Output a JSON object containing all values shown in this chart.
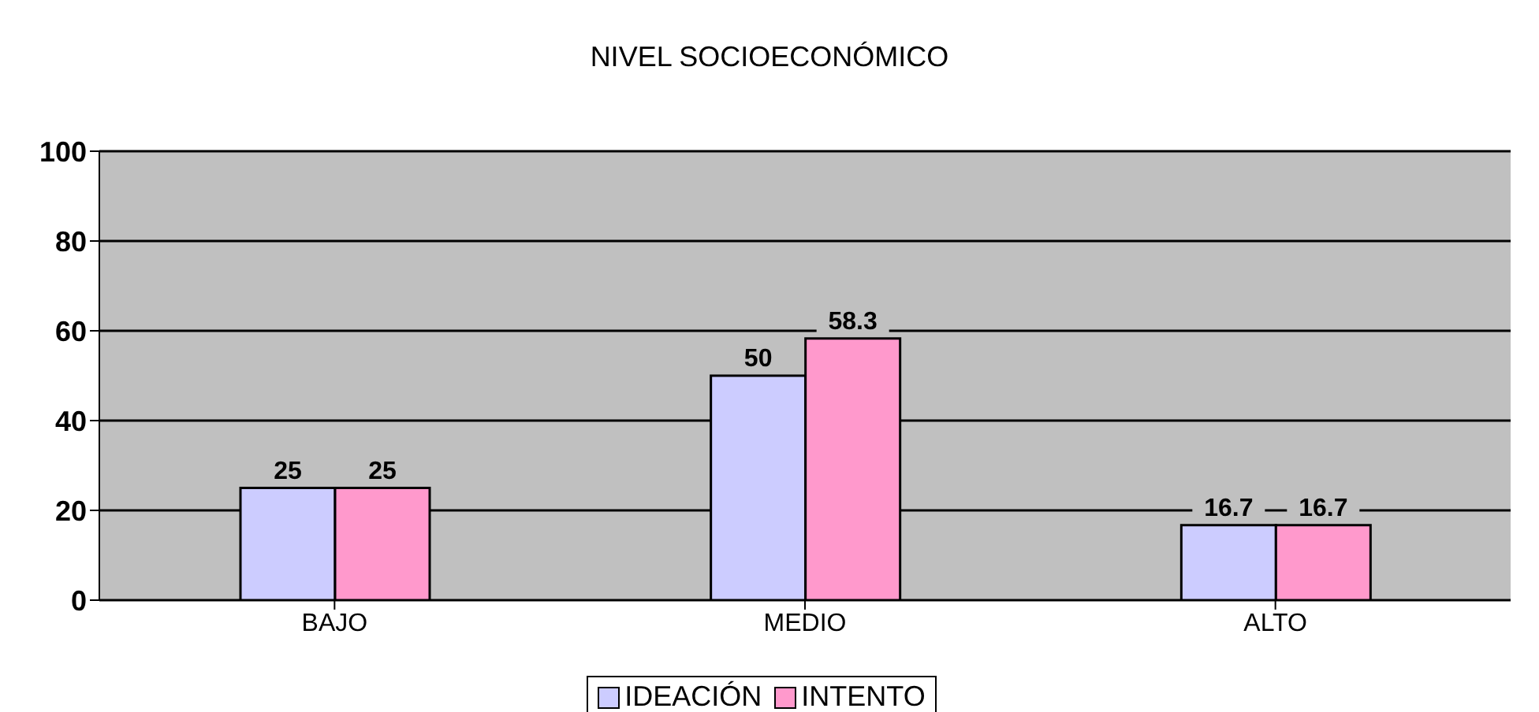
{
  "chart_data": {
    "type": "bar",
    "title": "NIVEL SOCIOECONÓMICO",
    "categories": [
      "BAJO",
      "MEDIO",
      "ALTO"
    ],
    "series": [
      {
        "name": "IDEACIÓN",
        "color": "#ccccff",
        "values": [
          25,
          50,
          16.7
        ]
      },
      {
        "name": "INTENTO",
        "color": "#ff99cc",
        "values": [
          25,
          58.3,
          16.7
        ]
      }
    ],
    "ylim": [
      0,
      100
    ],
    "yticks": [
      0,
      20,
      40,
      60,
      80,
      100
    ],
    "grid": "y",
    "legend": "bottom",
    "data_labels": true
  }
}
